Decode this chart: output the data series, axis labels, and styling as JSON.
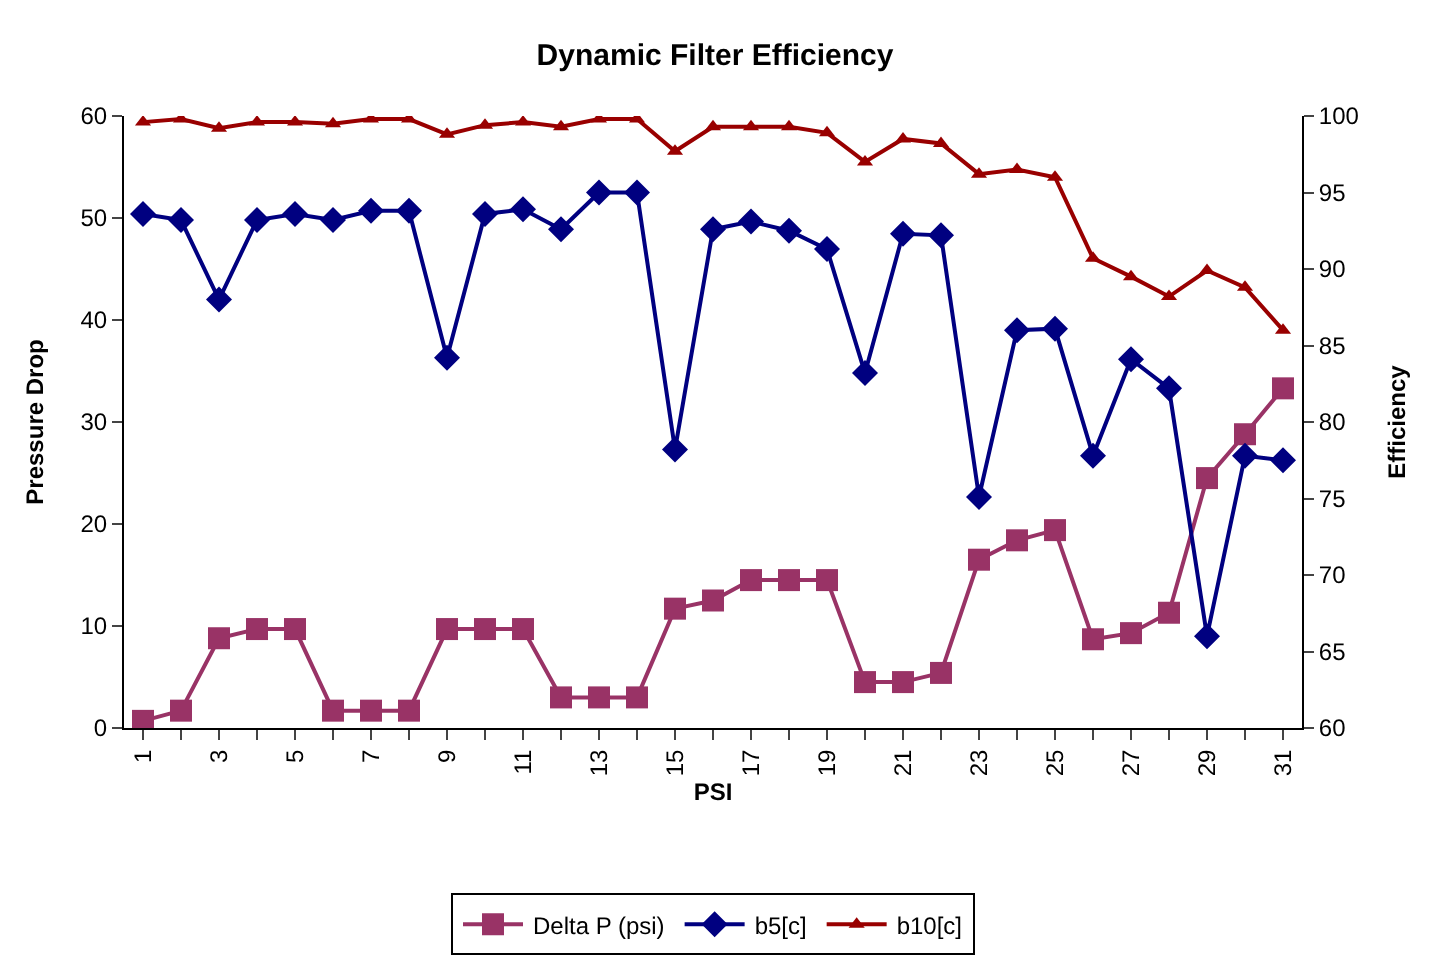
{
  "chart_data": {
    "type": "line",
    "title": "Dynamic Filter Efficiency",
    "xlabel": "PSI",
    "ylabel": "Pressure Drop",
    "y2label": "Efficiency",
    "categories": [
      "1",
      null,
      "3",
      null,
      "5",
      null,
      "7",
      null,
      "9",
      null,
      "11",
      null,
      "13",
      null,
      "15",
      null,
      "17",
      null,
      "19",
      null,
      "21",
      null,
      "23",
      null,
      "25",
      null,
      "27",
      null,
      "29",
      null,
      "31"
    ],
    "ylim": [
      0,
      60
    ],
    "yticks": [
      0,
      10,
      20,
      30,
      40,
      50,
      60
    ],
    "y2lim": [
      60,
      100
    ],
    "y2ticks": [
      60,
      65,
      70,
      75,
      80,
      85,
      90,
      95,
      100
    ],
    "legend": "bottom",
    "series": [
      {
        "name": "Delta P (psi)",
        "color": "#993366",
        "marker": "square",
        "values": [
          0.7,
          1.7,
          8.8,
          9.7,
          9.7,
          1.7,
          1.7,
          1.7,
          9.7,
          9.7,
          9.7,
          3.0,
          3.0,
          3.0,
          11.7,
          12.5,
          14.5,
          14.5,
          14.5,
          4.5,
          4.5,
          5.4,
          16.5,
          18.4,
          19.4,
          8.7,
          9.3,
          11.3,
          24.5,
          28.8,
          33.3
        ]
      },
      {
        "name": "b5[c]",
        "color": "#000080",
        "marker": "diamond",
        "axis": "y2",
        "values": [
          93.6,
          93.2,
          88.0,
          93.2,
          93.6,
          93.2,
          93.8,
          93.8,
          84.2,
          93.6,
          93.9,
          92.6,
          95.0,
          95.0,
          78.2,
          92.6,
          93.1,
          92.5,
          91.3,
          83.2,
          92.3,
          92.2,
          75.1,
          86.0,
          86.1,
          77.8,
          84.1,
          82.2,
          66.0,
          77.8,
          77.5
        ]
      },
      {
        "name": "b10[c]",
        "color": "#990000",
        "marker": "triangle",
        "axis": "y2",
        "values": [
          99.6,
          99.8,
          99.2,
          99.6,
          99.6,
          99.5,
          99.8,
          99.8,
          98.8,
          99.4,
          99.6,
          99.3,
          99.8,
          99.8,
          97.7,
          99.3,
          99.3,
          99.3,
          98.9,
          97.0,
          98.5,
          98.2,
          96.2,
          96.5,
          96.0,
          90.7,
          89.5,
          88.2,
          89.9,
          88.8,
          86.0
        ]
      }
    ]
  }
}
